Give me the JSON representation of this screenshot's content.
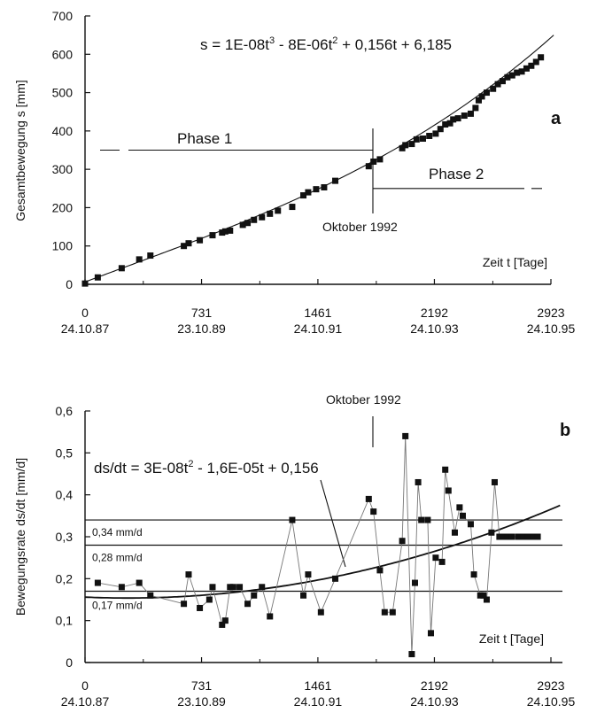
{
  "chart_data": [
    {
      "type": "scatter",
      "panel_letter": "a",
      "ylabel": "Gesamtbewegung s [mm]",
      "xlabel": "Zeit t [Tage]",
      "ylim": [
        0,
        700
      ],
      "xlim": [
        0,
        2923
      ],
      "yticks": [
        0,
        100,
        200,
        300,
        400,
        500,
        600,
        700
      ],
      "xticks": [
        {
          "value": 0,
          "label": "0",
          "date": "24.10.87"
        },
        {
          "value": 731,
          "label": "731",
          "date": "23.10.89"
        },
        {
          "value": 1461,
          "label": "1461",
          "date": "24.10.91"
        },
        {
          "value": 2192,
          "label": "2192",
          "date": "24.10.93"
        },
        {
          "value": 2923,
          "label": "2923",
          "date": "24.10.95"
        }
      ],
      "equation": {
        "prefix": "s = 1E-08t",
        "sup1": "3",
        "mid": " - 8E-06t",
        "sup2": "2",
        "suffix": " + 0,156t + 6,185"
      },
      "fit": {
        "a3": 1e-08,
        "a2": -8e-06,
        "a1": 0.156,
        "a0": 6.185
      },
      "annotations": {
        "phase1": "Phase 1",
        "phase2": "Phase 2",
        "event_label": "Oktober 1992",
        "event_x": 1806,
        "phase1_level": 350,
        "phase2_level": 250
      },
      "grid": false,
      "series": [
        {
          "marker": "square",
          "x": [
            0,
            80,
            230,
            340,
            410,
            620,
            650,
            720,
            800,
            860,
            880,
            910,
            990,
            1020,
            1060,
            1110,
            1160,
            1210,
            1300,
            1370,
            1400,
            1450,
            1500,
            1570,
            1780,
            1810,
            1850,
            1990,
            2010,
            2050,
            2080,
            2120,
            2160,
            2200,
            2230,
            2260,
            2290,
            2310,
            2340,
            2380,
            2420,
            2450,
            2470,
            2490,
            2520,
            2560,
            2590,
            2620,
            2650,
            2680,
            2710,
            2740,
            2770,
            2800,
            2830,
            2860
          ],
          "y": [
            2,
            18,
            42,
            65,
            75,
            100,
            107,
            115,
            128,
            135,
            138,
            140,
            155,
            160,
            168,
            175,
            184,
            192,
            202,
            232,
            240,
            248,
            253,
            270,
            308,
            320,
            326,
            355,
            363,
            366,
            378,
            380,
            387,
            393,
            405,
            417,
            420,
            430,
            433,
            440,
            445,
            460,
            480,
            490,
            500,
            510,
            522,
            530,
            540,
            545,
            552,
            555,
            563,
            570,
            580,
            592
          ]
        }
      ]
    },
    {
      "type": "line",
      "panel_letter": "b",
      "ylabel": "Bewegungsrate ds/dt [mm/d]",
      "xlabel": "Zeit t [Tage]",
      "ylim": [
        0,
        0.6
      ],
      "xlim": [
        0,
        2923
      ],
      "yticks": [
        "0",
        "0,1",
        "0,2",
        "0,3",
        "0,4",
        "0,5",
        "0,6"
      ],
      "ytick_values": [
        0,
        0.1,
        0.2,
        0.3,
        0.4,
        0.5,
        0.6
      ],
      "xticks": [
        {
          "value": 0,
          "label": "0",
          "date": "24.10.87"
        },
        {
          "value": 731,
          "label": "731",
          "date": "23.10.89"
        },
        {
          "value": 1461,
          "label": "1461",
          "date": "24.10.91"
        },
        {
          "value": 2192,
          "label": "2192",
          "date": "24.10.93"
        },
        {
          "value": 2923,
          "label": "2923",
          "date": "24.10.95"
        }
      ],
      "equation": {
        "prefix": "ds/dt = 3E-08t",
        "sup1": "2",
        "suffix": " - 1,6E-05t + 0,156"
      },
      "fit": {
        "a2": 3e-08,
        "a1": -1.6e-05,
        "a0": 0.156
      },
      "reference_lines": [
        {
          "value": 0.34,
          "label": "0,34 mm/d"
        },
        {
          "value": 0.28,
          "label": "0,28 mm/d"
        },
        {
          "value": 0.17,
          "label": "0,17 mm/d"
        }
      ],
      "annotations": {
        "event_label": "Oktober 1992",
        "event_x": 1806
      },
      "grid": false,
      "series": [
        {
          "marker": "square",
          "x": [
            80,
            230,
            340,
            410,
            620,
            650,
            720,
            780,
            800,
            860,
            880,
            910,
            930,
            970,
            1020,
            1060,
            1110,
            1160,
            1300,
            1370,
            1400,
            1480,
            1570,
            1780,
            1810,
            1850,
            1880,
            1930,
            1990,
            2010,
            2050,
            2070,
            2090,
            2110,
            2150,
            2170,
            2200,
            2240,
            2260,
            2280,
            2320,
            2350,
            2370,
            2420,
            2440,
            2480,
            2500,
            2520,
            2550,
            2570,
            2600,
            2620,
            2650,
            2680,
            2720,
            2750,
            2780,
            2810,
            2840
          ],
          "y": [
            0.19,
            0.18,
            0.19,
            0.16,
            0.14,
            0.21,
            0.13,
            0.15,
            0.18,
            0.09,
            0.1,
            0.18,
            0.18,
            0.18,
            0.14,
            0.16,
            0.18,
            0.11,
            0.34,
            0.16,
            0.21,
            0.12,
            0.2,
            0.39,
            0.36,
            0.22,
            0.12,
            0.12,
            0.29,
            0.54,
            0.02,
            0.19,
            0.43,
            0.34,
            0.34,
            0.07,
            0.25,
            0.24,
            0.46,
            0.41,
            0.31,
            0.37,
            0.35,
            0.33,
            0.21,
            0.16,
            0.16,
            0.15,
            0.31,
            0.43,
            0.3,
            0.3,
            0.3,
            0.3,
            0.3,
            0.3,
            0.3,
            0.3,
            0.3
          ]
        }
      ]
    }
  ]
}
